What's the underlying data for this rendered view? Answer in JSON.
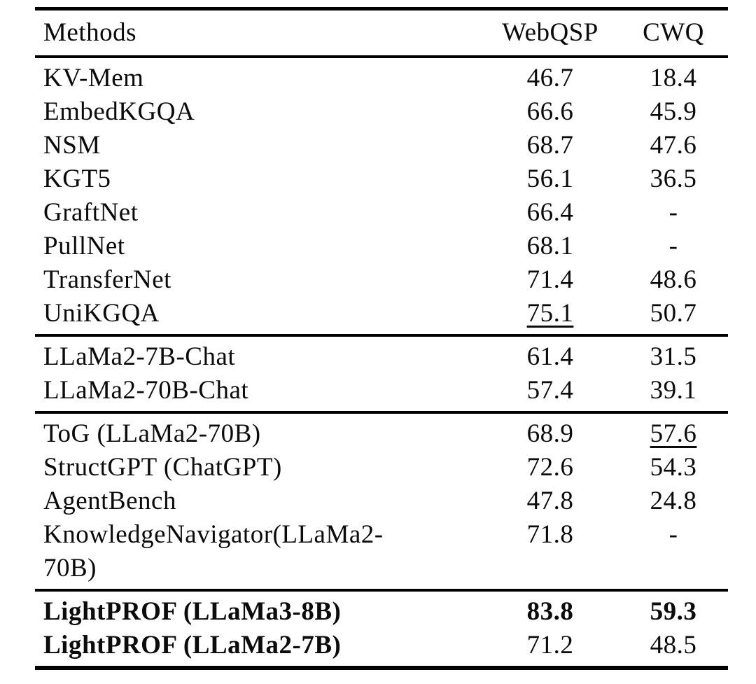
{
  "colors": {
    "background": "#ffffff",
    "text": "#0b0b0b",
    "rule": "#000000"
  },
  "table": {
    "header": {
      "methods": "Methods",
      "webqsp": "WebQSP",
      "cwq": "CWQ"
    },
    "sections": [
      {
        "name": "kg-embedding-methods",
        "rows": [
          {
            "method": "KV-Mem",
            "webqsp": "46.7",
            "cwq": "18.4",
            "bold": [],
            "underline": []
          },
          {
            "method": "EmbedKGQA",
            "webqsp": "66.6",
            "cwq": "45.9",
            "bold": [],
            "underline": []
          },
          {
            "method": "NSM",
            "webqsp": "68.7",
            "cwq": "47.6",
            "bold": [],
            "underline": []
          },
          {
            "method": "KGT5",
            "webqsp": "56.1",
            "cwq": "36.5",
            "bold": [],
            "underline": []
          },
          {
            "method": "GraftNet",
            "webqsp": "66.4",
            "cwq": "-",
            "bold": [],
            "underline": []
          },
          {
            "method": "PullNet",
            "webqsp": "68.1",
            "cwq": "-",
            "bold": [],
            "underline": []
          },
          {
            "method": "TransferNet",
            "webqsp": "71.4",
            "cwq": "48.6",
            "bold": [],
            "underline": []
          },
          {
            "method": "UniKGQA",
            "webqsp": "75.1",
            "cwq": "50.7",
            "bold": [],
            "underline": [
              "webqsp"
            ]
          }
        ]
      },
      {
        "name": "llm-baselines",
        "rows": [
          {
            "method": "LLaMa2-7B-Chat",
            "webqsp": "61.4",
            "cwq": "31.5",
            "bold": [],
            "underline": []
          },
          {
            "method": "LLaMa2-70B-Chat",
            "webqsp": "57.4",
            "cwq": "39.1",
            "bold": [],
            "underline": []
          }
        ]
      },
      {
        "name": "llm-kg-methods",
        "rows": [
          {
            "method": "ToG (LLaMa2-70B)",
            "webqsp": "68.9",
            "cwq": "57.6",
            "bold": [],
            "underline": [
              "cwq"
            ]
          },
          {
            "method": "StructGPT (ChatGPT)",
            "webqsp": "72.6",
            "cwq": "54.3",
            "bold": [],
            "underline": []
          },
          {
            "method": "AgentBench",
            "webqsp": "47.8",
            "cwq": "24.8",
            "bold": [],
            "underline": []
          },
          {
            "method": "KnowledgeNavigator(LLaMa2-70B)",
            "webqsp": "71.8",
            "cwq": "-",
            "bold": [],
            "underline": []
          }
        ]
      },
      {
        "name": "lightprof-ours",
        "rows": [
          {
            "method": "LightPROF (LLaMa3-8B)",
            "webqsp": "83.8",
            "cwq": "59.3",
            "bold": [
              "method",
              "webqsp",
              "cwq"
            ],
            "underline": []
          },
          {
            "method": "LightPROF (LLaMa2-7B)",
            "webqsp": "71.2",
            "cwq": "48.5",
            "bold": [
              "method"
            ],
            "underline": []
          }
        ]
      }
    ]
  }
}
